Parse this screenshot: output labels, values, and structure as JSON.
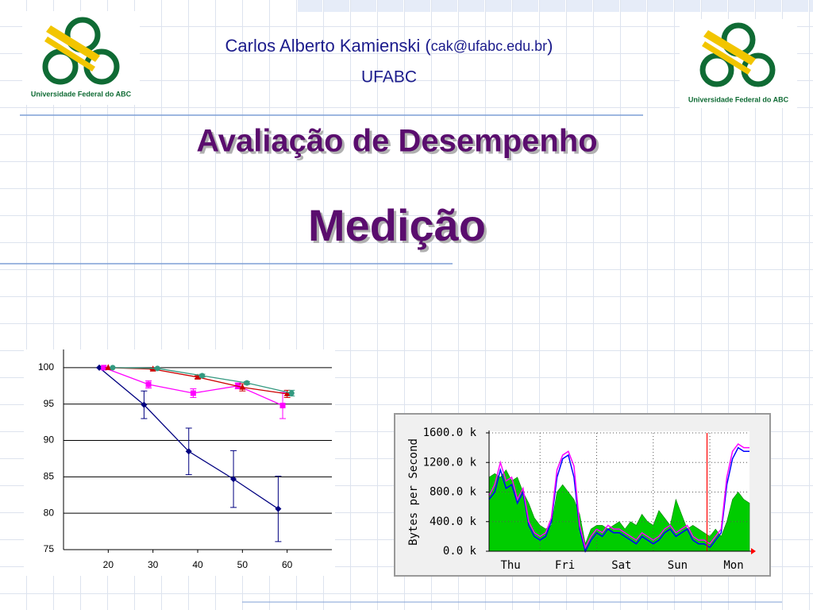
{
  "header": {
    "author": "Carlos Alberto Kamienski (",
    "email": "cak@ufabc.edu.br",
    "author_close": ")",
    "institution": "UFABC",
    "logo_left": "Universidade Federal do ABC",
    "logo_right": "Universidade Federal do ABC"
  },
  "title": "Avaliação de Desempenho",
  "subtitle": "Medição",
  "chart_data": [
    {
      "type": "line",
      "xlim": [
        10,
        70
      ],
      "xticks": [
        20,
        30,
        40,
        50,
        60
      ],
      "ylim": [
        75,
        102.5
      ],
      "yticks": [
        75,
        80,
        85,
        90,
        95,
        100
      ],
      "grid": true,
      "series": [
        {
          "color": "#000080",
          "marker": "diamond",
          "x": [
            18,
            28,
            38,
            48,
            58
          ],
          "values": [
            100,
            94.9,
            88.5,
            84.7,
            80.6
          ],
          "errors": [
            0,
            1.9,
            3.2,
            3.9,
            4.5
          ]
        },
        {
          "color": "#ff00ff",
          "marker": "square",
          "x": [
            19,
            29,
            39,
            49,
            59
          ],
          "values": [
            100,
            97.7,
            96.5,
            97.5,
            94.8
          ],
          "errors": [
            0,
            0.5,
            0.6,
            0.4,
            1.8
          ]
        },
        {
          "color": "#cc0000",
          "marker": "triangle",
          "x": [
            20,
            30,
            40,
            50,
            60
          ],
          "values": [
            100,
            99.8,
            98.7,
            97.3,
            96.4
          ],
          "errors": [
            0,
            0.1,
            0.2,
            0.5,
            0.5
          ]
        },
        {
          "color": "#339980",
          "marker": "circle",
          "x": [
            21,
            31,
            41,
            51,
            61
          ],
          "values": [
            100,
            99.9,
            98.9,
            97.9,
            96.5
          ],
          "errors": [
            0,
            0.1,
            0.2,
            0.2,
            0.4
          ]
        }
      ]
    },
    {
      "type": "area",
      "ylabel": "Bytes per Second",
      "xlim": [
        0,
        4.6
      ],
      "xticks": [
        {
          "value": 0.38,
          "label": "Thu"
        },
        {
          "value": 1.34,
          "label": "Fri"
        },
        {
          "value": 2.34,
          "label": "Sat"
        },
        {
          "value": 3.33,
          "label": "Sun"
        },
        {
          "value": 4.32,
          "label": "Mon"
        }
      ],
      "xgrid": [
        0.9,
        1.9,
        2.9,
        3.9
      ],
      "marker_line": 3.85,
      "marker_color": "#ff0000",
      "ylim": [
        0,
        1600
      ],
      "yticks": [
        {
          "value": 0,
          "label": "0.0 k"
        },
        {
          "value": 400,
          "label": "400.0 k"
        },
        {
          "value": 800,
          "label": "800.0 k"
        },
        {
          "value": 1200,
          "label": "1200.0 k"
        },
        {
          "value": 1600,
          "label": "1600.0 k"
        }
      ],
      "grid": true,
      "x": [
        0,
        0.1,
        0.2,
        0.3,
        0.4,
        0.5,
        0.6,
        0.7,
        0.8,
        0.9,
        1,
        1.1,
        1.2,
        1.3,
        1.4,
        1.5,
        1.6,
        1.7,
        1.8,
        1.9,
        2,
        2.1,
        2.2,
        2.3,
        2.4,
        2.5,
        2.6,
        2.7,
        2.8,
        2.9,
        3,
        3.1,
        3.2,
        3.3,
        3.4,
        3.5,
        3.6,
        3.7,
        3.8,
        3.9,
        4,
        4.1,
        4.2,
        4.3,
        4.4,
        4.5,
        4.6
      ],
      "series": [
        {
          "color": "#00cc00",
          "style": "area",
          "values": [
            1000,
            1050,
            1000,
            1100,
            950,
            1000,
            800,
            650,
            450,
            350,
            300,
            350,
            800,
            900,
            800,
            700,
            500,
            100,
            300,
            350,
            350,
            300,
            350,
            400,
            300,
            400,
            350,
            500,
            400,
            350,
            550,
            450,
            350,
            700,
            500,
            300,
            350,
            300,
            250,
            200,
            300,
            200,
            400,
            700,
            800,
            700,
            650
          ]
        },
        {
          "color": "#0000ff",
          "style": "line",
          "values": [
            700,
            800,
            1100,
            850,
            900,
            650,
            800,
            350,
            200,
            150,
            200,
            400,
            1000,
            1250,
            1300,
            1000,
            300,
            0,
            150,
            250,
            200,
            300,
            250,
            250,
            200,
            150,
            100,
            200,
            150,
            100,
            150,
            250,
            300,
            200,
            250,
            300,
            150,
            100,
            100,
            50,
            150,
            250,
            900,
            1250,
            1400,
            1350,
            1350
          ]
        },
        {
          "color": "#ff00ff",
          "style": "line",
          "values": [
            750,
            900,
            1200,
            950,
            1000,
            700,
            850,
            400,
            250,
            200,
            250,
            450,
            1100,
            1300,
            1350,
            1150,
            350,
            50,
            200,
            300,
            250,
            350,
            300,
            300,
            250,
            200,
            150,
            250,
            200,
            150,
            200,
            300,
            350,
            250,
            300,
            350,
            200,
            150,
            150,
            100,
            200,
            300,
            1000,
            1350,
            1450,
            1400,
            1400
          ]
        }
      ]
    }
  ]
}
